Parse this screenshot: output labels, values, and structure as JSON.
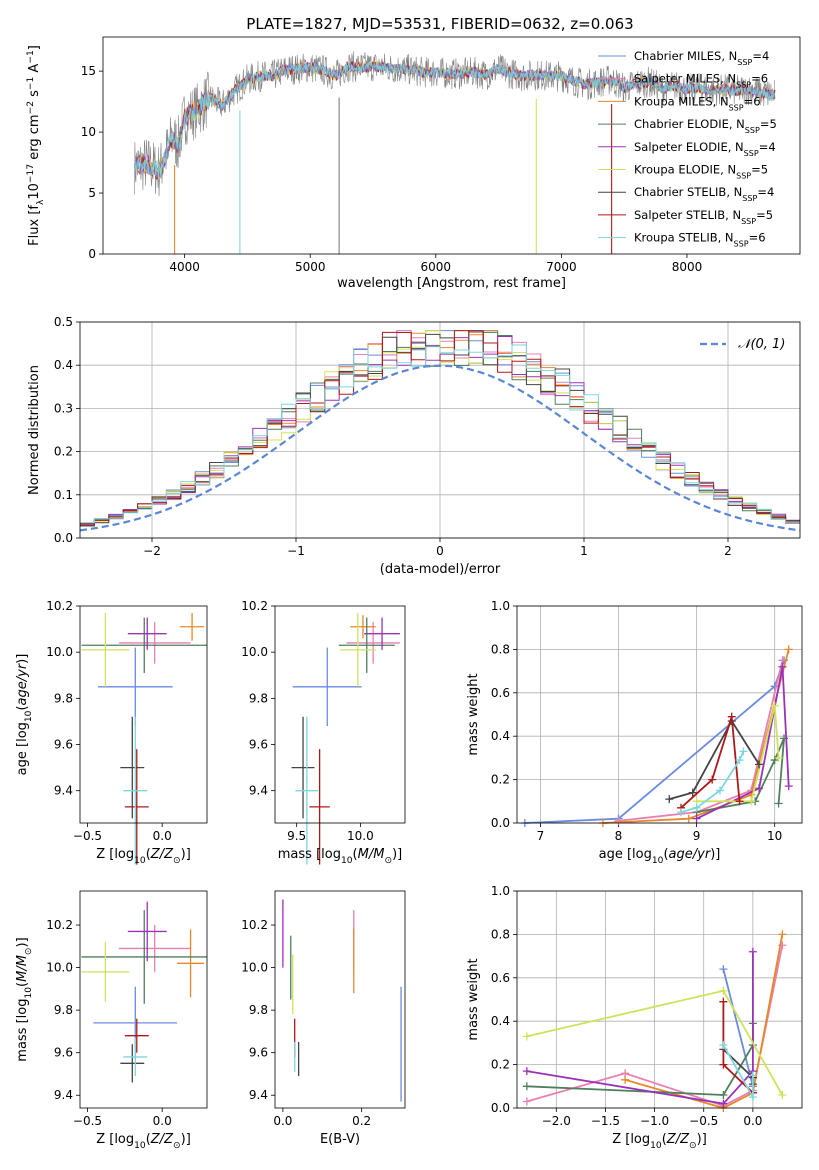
{
  "figure": {
    "title": "PLATE=1827, MJD=53531, FIBERID=0632, z=0.063"
  },
  "colors": {
    "chabrier_miles": "#6a8be0",
    "salpeter_miles": "#e87fb3",
    "kroupa_miles": "#e8872a",
    "chabrier_elodie": "#4f7f5c",
    "salpeter_elodie": "#9a32b8",
    "kroupa_elodie": "#cfe35a",
    "chabrier_stelib": "#444444",
    "salpeter_stelib": "#b01818",
    "kroupa_stelib": "#7ed6de",
    "spectrum_grey": "#808080",
    "gaussian": "#5b86d6",
    "grid": "#b0b0b0"
  },
  "chart_data": [
    {
      "id": "spectrum",
      "type": "line",
      "title": "PLATE=1827, MJD=53531, FIBERID=0632, z=0.063",
      "xlabel": "wavelength [Angstrom, rest frame]",
      "ylabel": "Flux [f_λ10^-17 erg cm^-2 s^-1 A^-1]",
      "xlim": [
        3350,
        8900
      ],
      "ylim": [
        0,
        17.8
      ],
      "xticks": [
        4000,
        5000,
        6000,
        7000,
        8000
      ],
      "yticks": [
        0,
        5,
        10,
        15
      ],
      "grid": false,
      "legend_position": "right",
      "legend": [
        {
          "label": "Chabrier MILES, N_SSP=4",
          "color_key": "chabrier_miles"
        },
        {
          "label": "Salpeter MILES, N_SSP=6",
          "color_key": "salpeter_miles"
        },
        {
          "label": "Kroupa MILES, N_SSP=6",
          "color_key": "kroupa_miles"
        },
        {
          "label": "Chabrier ELODIE, N_SSP=5",
          "color_key": "chabrier_elodie"
        },
        {
          "label": "Salpeter ELODIE, N_SSP=4",
          "color_key": "salpeter_elodie"
        },
        {
          "label": "Kroupa ELODIE, N_SSP=5",
          "color_key": "kroupa_elodie"
        },
        {
          "label": "Chabrier STELIB, N_SSP=4",
          "color_key": "chabrier_stelib"
        },
        {
          "label": "Salpeter STELIB, N_SSP=5",
          "color_key": "salpeter_stelib"
        },
        {
          "label": "Kroupa STELIB, N_SSP=6",
          "color_key": "kroupa_stelib"
        }
      ],
      "continuum": [
        [
          3600,
          7.2
        ],
        [
          3700,
          7.4
        ],
        [
          3800,
          6.8
        ],
        [
          3900,
          9.5
        ],
        [
          3950,
          9.0
        ],
        [
          4000,
          11.2
        ],
        [
          4100,
          11.8
        ],
        [
          4200,
          12.8
        ],
        [
          4300,
          12.2
        ],
        [
          4400,
          13.4
        ],
        [
          4500,
          14.3
        ],
        [
          4600,
          14.6
        ],
        [
          4700,
          14.6
        ],
        [
          4800,
          15.1
        ],
        [
          4900,
          15.2
        ],
        [
          5000,
          15.3
        ],
        [
          5100,
          15.1
        ],
        [
          5200,
          14.6
        ],
        [
          5300,
          15.4
        ],
        [
          5400,
          15.3
        ],
        [
          5500,
          15.4
        ],
        [
          5600,
          15.3
        ],
        [
          5700,
          15.2
        ],
        [
          5800,
          15.1
        ],
        [
          5900,
          14.9
        ],
        [
          6000,
          14.9
        ],
        [
          6100,
          14.8
        ],
        [
          6200,
          14.8
        ],
        [
          6300,
          14.9
        ],
        [
          6400,
          14.7
        ],
        [
          6500,
          15.2
        ],
        [
          6600,
          14.8
        ],
        [
          6700,
          14.6
        ],
        [
          6800,
          14.7
        ],
        [
          6900,
          14.6
        ],
        [
          7000,
          14.6
        ],
        [
          7100,
          14.2
        ],
        [
          7200,
          13.9
        ],
        [
          7300,
          14.1
        ],
        [
          7400,
          14.3
        ],
        [
          7500,
          13.6
        ],
        [
          7600,
          14.0
        ],
        [
          7700,
          14.1
        ],
        [
          7800,
          13.6
        ],
        [
          7900,
          13.8
        ],
        [
          8000,
          13.5
        ],
        [
          8100,
          13.6
        ],
        [
          8200,
          13.4
        ],
        [
          8300,
          13.5
        ],
        [
          8400,
          13.4
        ],
        [
          8500,
          13.5
        ],
        [
          8600,
          13.2
        ],
        [
          8700,
          13.1
        ]
      ],
      "absorption_spikes": [
        {
          "x": 3920,
          "y": 0,
          "color_key": "kroupa_miles"
        },
        {
          "x": 4440,
          "y": 0,
          "color_key": "kroupa_stelib"
        },
        {
          "x": 5230,
          "y": 0,
          "color_key": "spectrum_grey"
        },
        {
          "x": 6800,
          "y": 0,
          "color_key": "kroupa_elodie"
        },
        {
          "x": 7400,
          "y": 0,
          "color_key": "salpeter_stelib"
        }
      ]
    },
    {
      "id": "residuals",
      "type": "histogram",
      "xlabel": "(data-model)/error",
      "ylabel": "Normed distribution",
      "xlim": [
        -2.5,
        2.5
      ],
      "ylim": [
        0,
        0.5
      ],
      "xticks": [
        -2,
        -1,
        0,
        1,
        2
      ],
      "yticks": [
        0.0,
        0.1,
        0.2,
        0.3,
        0.4,
        0.5
      ],
      "grid": true,
      "legend_position": "top-right",
      "legend": [
        {
          "label": "𝒩(0, 1)",
          "color_key": "gaussian",
          "style": "dashed"
        }
      ],
      "bin_width": 0.1,
      "gaussian": {
        "mean": 0,
        "sigma": 1
      }
    },
    {
      "id": "age-vs-Z",
      "type": "errorbar",
      "xlabel": "Z [log10(Z/Z⊙)]",
      "ylabel": "age [log10(age/yr)]",
      "xlim": [
        -0.55,
        0.3
      ],
      "ylim": [
        9.26,
        10.2
      ],
      "xticks": [
        -0.5,
        0.0
      ],
      "yticks": [
        9.4,
        9.6,
        9.8,
        10.0,
        10.2
      ],
      "grid": false,
      "points": [
        {
          "x": -0.18,
          "xerr": 0.25,
          "y": 9.85,
          "yerr": 0.17,
          "color_key": "chabrier_miles"
        },
        {
          "x": -0.05,
          "xerr": 0.24,
          "y": 10.04,
          "yerr": 0.09,
          "color_key": "salpeter_miles"
        },
        {
          "x": 0.2,
          "xerr": 0.08,
          "y": 10.11,
          "yerr": 0.06,
          "color_key": "kroupa_miles"
        },
        {
          "x": -0.12,
          "xerr": 0.42,
          "y": 10.03,
          "yerr": 0.12,
          "color_key": "chabrier_elodie"
        },
        {
          "x": -0.1,
          "xerr": 0.13,
          "y": 10.08,
          "yerr": 0.07,
          "color_key": "salpeter_elodie"
        },
        {
          "x": -0.38,
          "xerr": 0.16,
          "y": 10.01,
          "yerr": 0.16,
          "color_key": "kroupa_elodie"
        },
        {
          "x": -0.2,
          "xerr": 0.08,
          "y": 9.5,
          "yerr": 0.22,
          "color_key": "chabrier_stelib"
        },
        {
          "x": -0.17,
          "xerr": 0.08,
          "y": 9.33,
          "yerr": 0.25,
          "color_key": "salpeter_stelib"
        },
        {
          "x": -0.18,
          "xerr": 0.08,
          "y": 9.4,
          "yerr": 0.32,
          "color_key": "kroupa_stelib"
        }
      ]
    },
    {
      "id": "age-vs-mass",
      "type": "errorbar",
      "xlabel": "mass [log10(M/M⊙)]",
      "ylabel": "",
      "xlim": [
        9.33,
        10.35
      ],
      "ylim": [
        9.26,
        10.2
      ],
      "xticks": [
        9.5,
        10.0
      ],
      "yticks": [
        9.4,
        9.6,
        9.8,
        10.0,
        10.2
      ],
      "grid": false,
      "points": [
        {
          "x": 9.74,
          "xerr": 0.27,
          "y": 9.85,
          "yerr": 0.17,
          "color_key": "chabrier_miles"
        },
        {
          "x": 10.1,
          "xerr": 0.21,
          "y": 10.04,
          "yerr": 0.09,
          "color_key": "salpeter_miles"
        },
        {
          "x": 10.02,
          "xerr": 0.1,
          "y": 10.11,
          "yerr": 0.05,
          "color_key": "kroupa_miles"
        },
        {
          "x": 10.05,
          "xerr": 0.22,
          "y": 10.03,
          "yerr": 0.12,
          "color_key": "chabrier_elodie"
        },
        {
          "x": 10.17,
          "xerr": 0.14,
          "y": 10.08,
          "yerr": 0.07,
          "color_key": "salpeter_elodie"
        },
        {
          "x": 9.98,
          "xerr": 0.14,
          "y": 10.01,
          "yerr": 0.16,
          "color_key": "kroupa_elodie"
        },
        {
          "x": 9.55,
          "xerr": 0.09,
          "y": 9.5,
          "yerr": 0.22,
          "color_key": "chabrier_stelib"
        },
        {
          "x": 9.68,
          "xerr": 0.08,
          "y": 9.33,
          "yerr": 0.25,
          "color_key": "salpeter_stelib"
        },
        {
          "x": 9.58,
          "xerr": 0.09,
          "y": 9.4,
          "yerr": 0.32,
          "color_key": "kroupa_stelib"
        }
      ]
    },
    {
      "id": "weight-vs-age",
      "type": "line",
      "xlabel": "age [log10(age/yr)]",
      "ylabel": "mass weight",
      "xlim": [
        6.7,
        10.35
      ],
      "ylim": [
        0,
        1.0
      ],
      "xticks": [
        7,
        8,
        9,
        10
      ],
      "yticks": [
        0.0,
        0.2,
        0.4,
        0.6,
        0.8,
        1.0
      ],
      "grid": true,
      "series": [
        {
          "color_key": "chabrier_miles",
          "x": [
            6.8,
            8.0,
            10.0,
            10.12
          ],
          "y": [
            0.0,
            0.02,
            0.63,
            0.75
          ]
        },
        {
          "color_key": "salpeter_miles",
          "x": [
            8.0,
            9.0,
            9.7,
            10.1
          ],
          "y": [
            0.01,
            0.05,
            0.15,
            0.75
          ]
        },
        {
          "color_key": "kroupa_miles",
          "x": [
            7.8,
            8.9,
            9.7,
            10.18
          ],
          "y": [
            0.0,
            0.02,
            0.13,
            0.8
          ]
        },
        {
          "color_key": "chabrier_elodie",
          "x": [
            9.0,
            9.75,
            10.0,
            10.12,
            10.05
          ],
          "y": [
            0.05,
            0.1,
            0.29,
            0.39,
            0.09
          ]
        },
        {
          "color_key": "salpeter_elodie",
          "x": [
            9.0,
            9.8,
            10.1,
            10.18
          ],
          "y": [
            0.02,
            0.16,
            0.72,
            0.17
          ]
        },
        {
          "color_key": "kroupa_elodie",
          "x": [
            9.0,
            9.7,
            10.0,
            10.05
          ],
          "y": [
            0.1,
            0.1,
            0.54,
            0.3
          ]
        },
        {
          "color_key": "chabrier_stelib",
          "x": [
            8.65,
            8.95,
            9.45,
            9.8
          ],
          "y": [
            0.11,
            0.14,
            0.47,
            0.27
          ]
        },
        {
          "color_key": "salpeter_stelib",
          "x": [
            8.8,
            9.2,
            9.45,
            9.55
          ],
          "y": [
            0.07,
            0.2,
            0.49,
            0.1
          ]
        },
        {
          "color_key": "kroupa_stelib",
          "x": [
            8.8,
            9.0,
            9.3,
            9.55,
            9.6
          ],
          "y": [
            0.05,
            0.07,
            0.15,
            0.29,
            0.33
          ]
        }
      ]
    },
    {
      "id": "mass-vs-Z",
      "type": "errorbar",
      "xlabel": "Z [log10(Z/Z⊙)]",
      "ylabel": "mass [log10(M/M⊙)]",
      "xlim": [
        -0.55,
        0.3
      ],
      "ylim": [
        9.34,
        10.36
      ],
      "xticks": [
        -0.5,
        0.0
      ],
      "yticks": [
        9.4,
        9.6,
        9.8,
        10.0,
        10.2
      ],
      "grid": false,
      "points": [
        {
          "x": -0.18,
          "xerr": 0.28,
          "y": 9.74,
          "yerr": 0.17,
          "color_key": "chabrier_miles"
        },
        {
          "x": -0.05,
          "xerr": 0.24,
          "y": 10.09,
          "yerr": 0.11,
          "color_key": "salpeter_miles"
        },
        {
          "x": 0.19,
          "xerr": 0.09,
          "y": 10.02,
          "yerr": 0.16,
          "color_key": "kroupa_miles"
        },
        {
          "x": -0.12,
          "xerr": 0.42,
          "y": 10.05,
          "yerr": 0.22,
          "color_key": "chabrier_elodie"
        },
        {
          "x": -0.1,
          "xerr": 0.13,
          "y": 10.17,
          "yerr": 0.14,
          "color_key": "salpeter_elodie"
        },
        {
          "x": -0.38,
          "xerr": 0.16,
          "y": 9.98,
          "yerr": 0.14,
          "color_key": "kroupa_elodie"
        },
        {
          "x": -0.2,
          "xerr": 0.08,
          "y": 9.55,
          "yerr": 0.09,
          "color_key": "chabrier_stelib"
        },
        {
          "x": -0.17,
          "xerr": 0.08,
          "y": 9.68,
          "yerr": 0.08,
          "color_key": "salpeter_stelib"
        },
        {
          "x": -0.18,
          "xerr": 0.08,
          "y": 9.58,
          "yerr": 0.09,
          "color_key": "kroupa_stelib"
        }
      ]
    },
    {
      "id": "mass-vs-EBV",
      "type": "errorbar",
      "xlabel": "E(B-V)",
      "ylabel": "",
      "xlim": [
        -0.02,
        0.31
      ],
      "ylim": [
        9.34,
        10.36
      ],
      "xticks": [
        0.0,
        0.2
      ],
      "yticks": [
        9.4,
        9.6,
        9.8,
        10.0,
        10.2
      ],
      "grid": false,
      "points": [
        {
          "x": 0.3,
          "xerr": 0,
          "y": 9.64,
          "yerr": 0.27,
          "color_key": "chabrier_miles"
        },
        {
          "x": 0.18,
          "xerr": 0,
          "y": 10.13,
          "yerr": 0.14,
          "color_key": "salpeter_miles"
        },
        {
          "x": 0.18,
          "xerr": 0,
          "y": 10.03,
          "yerr": 0.15,
          "color_key": "kroupa_miles"
        },
        {
          "x": 0.02,
          "xerr": 0,
          "y": 10.0,
          "yerr": 0.15,
          "color_key": "chabrier_elodie"
        },
        {
          "x": 0.0,
          "xerr": 0,
          "y": 10.16,
          "yerr": 0.16,
          "color_key": "salpeter_elodie"
        },
        {
          "x": 0.025,
          "xerr": 0,
          "y": 9.92,
          "yerr": 0.14,
          "color_key": "kroupa_elodie"
        },
        {
          "x": 0.04,
          "xerr": 0,
          "y": 9.57,
          "yerr": 0.08,
          "color_key": "chabrier_stelib"
        },
        {
          "x": 0.03,
          "xerr": 0,
          "y": 9.67,
          "yerr": 0.09,
          "color_key": "salpeter_stelib"
        },
        {
          "x": 0.03,
          "xerr": 0,
          "y": 9.58,
          "yerr": 0.07,
          "color_key": "kroupa_stelib"
        }
      ]
    },
    {
      "id": "weight-vs-Z",
      "type": "line",
      "xlabel": "Z [log10(Z/Z⊙)]",
      "ylabel": "mass weight",
      "xlim": [
        -2.4,
        0.5
      ],
      "ylim": [
        0,
        1.0
      ],
      "xticks": [
        -2.0,
        -1.5,
        -1.0,
        -0.5,
        0.0
      ],
      "yticks": [
        0.0,
        0.2,
        0.4,
        0.6,
        0.8,
        1.0
      ],
      "grid": true,
      "series": [
        {
          "color_key": "chabrier_miles",
          "x": [
            -0.3,
            0.0,
            0.0
          ],
          "y": [
            0.64,
            0.1,
            0.07
          ]
        },
        {
          "color_key": "salpeter_miles",
          "x": [
            -2.3,
            -1.3,
            -0.3,
            0.0,
            0.3
          ],
          "y": [
            0.03,
            0.16,
            0.01,
            0.08,
            0.75
          ]
        },
        {
          "color_key": "kroupa_miles",
          "x": [
            -1.3,
            -0.3,
            0.0,
            0.3
          ],
          "y": [
            0.13,
            0.0,
            0.07,
            0.8
          ]
        },
        {
          "color_key": "chabrier_elodie",
          "x": [
            -2.3,
            -0.3,
            0.0,
            0.0
          ],
          "y": [
            0.1,
            0.06,
            0.29,
            0.39
          ]
        },
        {
          "color_key": "salpeter_elodie",
          "x": [
            -2.3,
            -0.3,
            0.0,
            0.0
          ],
          "y": [
            0.17,
            0.02,
            0.17,
            0.72
          ]
        },
        {
          "color_key": "kroupa_elodie",
          "x": [
            -2.3,
            -0.3,
            0.3
          ],
          "y": [
            0.33,
            0.54,
            0.06
          ]
        },
        {
          "color_key": "chabrier_stelib",
          "x": [
            -0.3,
            0.0,
            0.0
          ],
          "y": [
            0.27,
            0.14,
            0.11
          ]
        },
        {
          "color_key": "salpeter_stelib",
          "x": [
            -0.3,
            -0.3,
            0.0
          ],
          "y": [
            0.49,
            0.2,
            0.07
          ]
        },
        {
          "color_key": "kroupa_stelib",
          "x": [
            -0.3,
            0.0,
            0.0
          ],
          "y": [
            0.29,
            0.05,
            0.15
          ]
        }
      ]
    }
  ]
}
